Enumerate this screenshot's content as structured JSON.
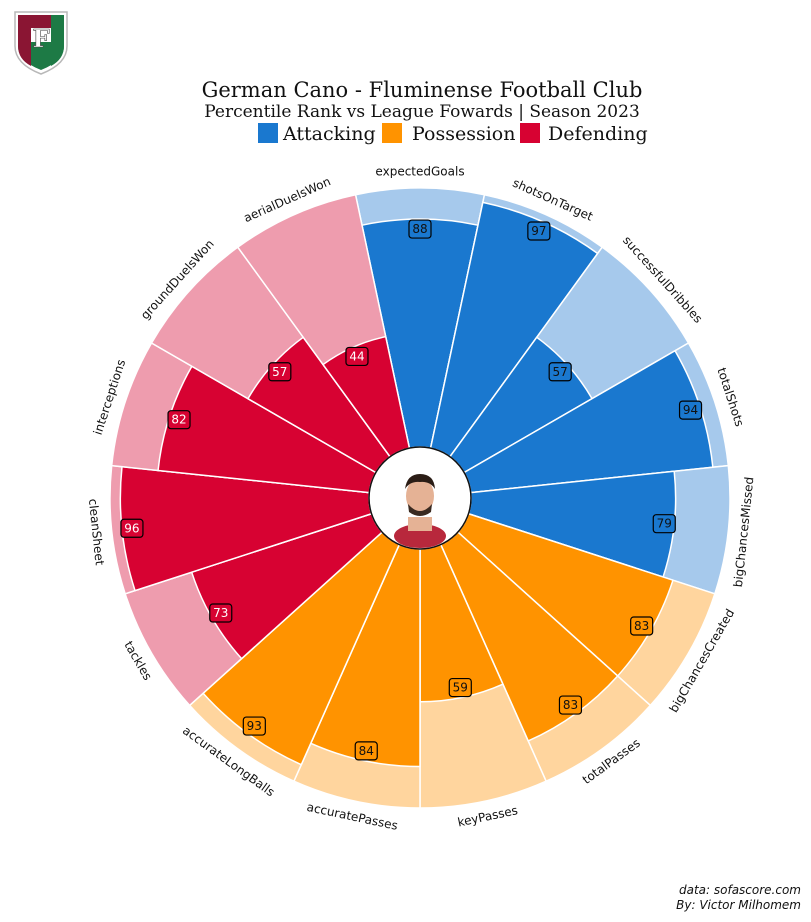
{
  "header": {
    "title": "German Cano - Fluminense Football Club",
    "subtitle": "Percentile Rank vs League Fowards | Season 2023"
  },
  "legend": [
    {
      "label": "Attacking",
      "color": "#1a78cf"
    },
    {
      "label": "Possession",
      "color": "#ff9300"
    },
    {
      "label": "Defending",
      "color": "#d70232"
    }
  ],
  "footer": {
    "source": "data: sofascore.com",
    "author": "By: Victor Milhomem"
  },
  "icons": {
    "club_crest": "fluminense-crest-icon",
    "player_photo": "player-avatar-icon"
  },
  "colors": {
    "Attacking": {
      "fill": "#1a78cf",
      "bg": "#a6c9ec"
    },
    "Possession": {
      "fill": "#ff9300",
      "bg": "#ffd59e"
    },
    "Defending": {
      "fill": "#d70232",
      "bg": "#ee9cae"
    }
  },
  "chart_data": {
    "type": "pizza",
    "range": [
      0,
      100
    ],
    "start_angle_deg": 0,
    "direction": "clockwise",
    "slices": [
      {
        "param": "expectedGoals",
        "value": 88,
        "group": "Attacking"
      },
      {
        "param": "shotsOnTarget",
        "value": 97,
        "group": "Attacking"
      },
      {
        "param": "successfulDribbles",
        "value": 57,
        "group": "Attacking"
      },
      {
        "param": "totalShots",
        "value": 94,
        "group": "Attacking"
      },
      {
        "param": "bigChancesMissed",
        "value": 79,
        "group": "Attacking"
      },
      {
        "param": "bigChancesCreated",
        "value": 83,
        "group": "Possession"
      },
      {
        "param": "totalPasses",
        "value": 83,
        "group": "Possession"
      },
      {
        "param": "keyPasses",
        "value": 59,
        "group": "Possession"
      },
      {
        "param": "accuratePasses",
        "value": 84,
        "group": "Possession"
      },
      {
        "param": "accurateLongBalls",
        "value": 93,
        "group": "Possession"
      },
      {
        "param": "tackles",
        "value": 73,
        "group": "Defending"
      },
      {
        "param": "cleanSheet",
        "value": 96,
        "group": "Defending"
      },
      {
        "param": "interceptions",
        "value": 82,
        "group": "Defending"
      },
      {
        "param": "groundDuelsWon",
        "value": 57,
        "group": "Defending"
      },
      {
        "param": "aerialDuelsWon",
        "value": 44,
        "group": "Defending"
      }
    ]
  }
}
